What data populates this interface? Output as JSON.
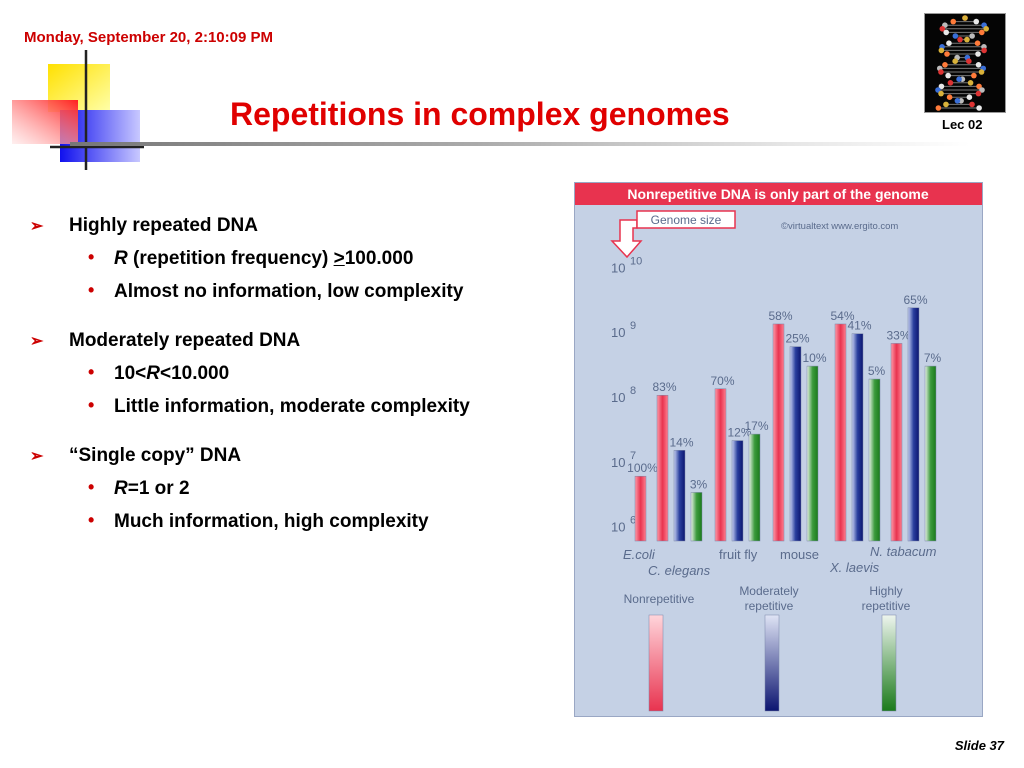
{
  "header": {
    "timestamp": "Monday, September 20, 2:10:09 PM",
    "title": "Repetitions in complex genomes",
    "lecture": "Lec 02"
  },
  "bullets": [
    {
      "text": "Highly repeated DNA",
      "sub": [
        {
          "parts": {
            "r": "R",
            "a": " (repetition frequency) ",
            "gt": ">",
            "b": "100.000"
          }
        },
        {
          "text": "Almost no information, low complexity"
        }
      ]
    },
    {
      "text": "Moderately repeated DNA",
      "sub": [
        {
          "parts": {
            "a": "10<",
            "r": "R",
            "b": "<10.000"
          }
        },
        {
          "text": "Little information, moderate complexity"
        }
      ]
    },
    {
      "text": "“Single copy” DNA",
      "sub": [
        {
          "parts": {
            "r": "R",
            "b": "=1 or 2"
          }
        },
        {
          "text": "Much information, high complexity"
        }
      ]
    }
  ],
  "footer": {
    "slide_label": "Slide 37"
  },
  "icons": {
    "bullet1": "arrow-bullet-icon",
    "bullet2": "dot-bullet-icon"
  },
  "colors": {
    "title": "#e00000",
    "accent": "#cc0000",
    "figure_bg": "#c5d1e5"
  },
  "chart_data": {
    "type": "bar",
    "title": "Nonrepetitive DNA is only part of the genome",
    "credit": "©virtualtext  www.ergito.com",
    "callout": "Genome size",
    "y_ticks": [
      {
        "base": "10",
        "exp": "10",
        "value": 10
      },
      {
        "base": "10",
        "exp": "9",
        "value": 9
      },
      {
        "base": "10",
        "exp": "8",
        "value": 8
      },
      {
        "base": "10",
        "exp": "7",
        "value": 7
      },
      {
        "base": "10",
        "exp": "6",
        "value": 6
      }
    ],
    "ylim_log10": [
      5.7,
      10.3
    ],
    "species": [
      "E.coli",
      "C. elegans",
      "fruit fly",
      "mouse",
      "X. laevis",
      "N. tabacum"
    ],
    "species_values": [
      {
        "name": "E.coli",
        "bars": [
          {
            "type": "nonrep",
            "log_size": 6.7,
            "label": "100%"
          }
        ]
      },
      {
        "name": "C. elegans",
        "bars": [
          {
            "type": "nonrep",
            "log_size": 7.95,
            "label": "83%"
          },
          {
            "type": "mod",
            "log_size": 7.1,
            "label": "14%"
          },
          {
            "type": "high",
            "log_size": 6.45,
            "label": "3%"
          }
        ]
      },
      {
        "name": "fruit fly",
        "bars": [
          {
            "type": "nonrep",
            "log_size": 8.05,
            "label": "70%"
          },
          {
            "type": "mod",
            "log_size": 7.25,
            "label": "12%"
          },
          {
            "type": "high",
            "log_size": 7.35,
            "label": "17%"
          }
        ]
      },
      {
        "name": "mouse",
        "bars": [
          {
            "type": "nonrep",
            "log_size": 9.05,
            "label": "58%"
          },
          {
            "type": "mod",
            "log_size": 8.7,
            "label": "25%"
          },
          {
            "type": "high",
            "log_size": 8.4,
            "label": "10%"
          }
        ]
      },
      {
        "name": "X. laevis",
        "bars": [
          {
            "type": "nonrep",
            "log_size": 9.05,
            "label": "54%"
          },
          {
            "type": "mod",
            "log_size": 8.9,
            "label": "41%"
          },
          {
            "type": "high",
            "log_size": 8.2,
            "label": "5%"
          }
        ]
      },
      {
        "name": "N. tabacum",
        "bars": [
          {
            "type": "nonrep",
            "log_size": 8.75,
            "label": "33%"
          },
          {
            "type": "mod",
            "log_size": 9.3,
            "label": "65%"
          },
          {
            "type": "high",
            "log_size": 8.4,
            "label": "7%"
          }
        ]
      }
    ],
    "legend": [
      {
        "type": "nonrep",
        "label_lines": [
          "Nonrepetitive"
        ]
      },
      {
        "type": "mod",
        "label_lines": [
          "Moderately",
          "repetitive"
        ]
      },
      {
        "type": "high",
        "label_lines": [
          "Highly",
          "repetitive"
        ]
      }
    ],
    "series_colors": {
      "nonrep": "#e8334f",
      "mod": "#2a3f9e",
      "high": "#3d9b3d"
    }
  }
}
